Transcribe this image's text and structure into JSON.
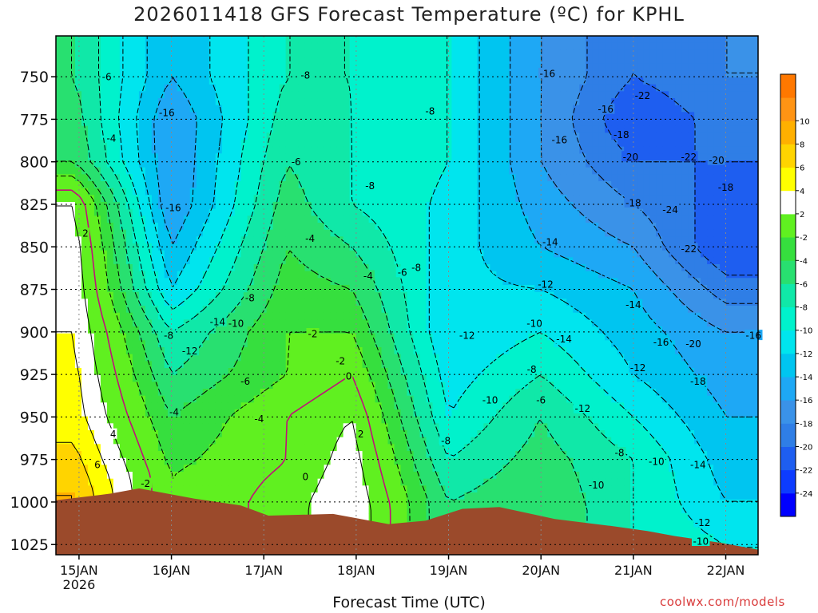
{
  "chart_data": {
    "type": "heatmap",
    "title": "2026011418 GFS Forecast Temperature (ºC) for KPHL",
    "xlabel": "Forecast Time (UTC)",
    "ylabel": "",
    "credit": "coolwx.com/models",
    "x_ticks": [
      {
        "label": "15JAN",
        "sublabel": "2026",
        "t": 0.25
      },
      {
        "label": "16JAN",
        "sublabel": "",
        "t": 1.25
      },
      {
        "label": "17JAN",
        "sublabel": "",
        "t": 2.25
      },
      {
        "label": "18JAN",
        "sublabel": "",
        "t": 3.25
      },
      {
        "label": "19JAN",
        "sublabel": "",
        "t": 4.25
      },
      {
        "label": "20JAN",
        "sublabel": "",
        "t": 5.25
      },
      {
        "label": "21JAN",
        "sublabel": "",
        "t": 6.25
      },
      {
        "label": "22JAN",
        "sublabel": "",
        "t": 7.25
      }
    ],
    "x_range_days": [
      0,
      7.6
    ],
    "y_ticks": [
      750,
      775,
      800,
      825,
      850,
      875,
      900,
      925,
      950,
      975,
      1000,
      1025
    ],
    "y_range_hpa": [
      726,
      1031
    ],
    "grid": true,
    "colorbar": {
      "levels": [
        -26,
        -24,
        -22,
        -20,
        -18,
        -16,
        -14,
        -12,
        -10,
        -8,
        -6,
        -4,
        -2,
        2,
        4,
        6,
        8,
        10,
        12
      ],
      "tick_labels": [
        "-24",
        "-22",
        "-20",
        "-18",
        "-16",
        "-14",
        "-12",
        "-10",
        "-8",
        "-6",
        "-4",
        "-2",
        "2",
        "4",
        "6",
        "8",
        "10"
      ],
      "colors": [
        "#0000ff",
        "#0d3cff",
        "#1e5ef0",
        "#2f7ee6",
        "#3a92e8",
        "#1ea8f5",
        "#00c5f0",
        "#00e5ee",
        "#00f2cc",
        "#10e8a8",
        "#28e070",
        "#36df3e",
        "#60f020",
        "#ffffff",
        "#ffff00",
        "#ffd400",
        "#ffb000",
        "#ff9414",
        "#ff7800"
      ]
    },
    "ground_hpa_by_day": [
      [
        0,
        999
      ],
      [
        0.6,
        995
      ],
      [
        0.9,
        992
      ],
      [
        1.5,
        998
      ],
      [
        2.0,
        1002
      ],
      [
        2.3,
        1008
      ],
      [
        3.0,
        1007
      ],
      [
        3.6,
        1013
      ],
      [
        4.0,
        1011
      ],
      [
        4.4,
        1004
      ],
      [
        4.8,
        1003
      ],
      [
        5.4,
        1010
      ],
      [
        6.0,
        1014
      ],
      [
        6.4,
        1017
      ],
      [
        6.7,
        1020
      ],
      [
        7.2,
        1024
      ],
      [
        7.6,
        1028
      ]
    ],
    "temperature_snapshots_c": [
      {
        "t": 0.2,
        "profile": [
          [
            750,
            -6
          ],
          [
            800,
            -4
          ],
          [
            825,
            2
          ],
          [
            850,
            3
          ],
          [
            900,
            4
          ],
          [
            950,
            5
          ],
          [
            980,
            7
          ],
          [
            995,
            8
          ]
        ]
      },
      {
        "t": 1.25,
        "profile": [
          [
            750,
            -14
          ],
          [
            775,
            -16
          ],
          [
            825,
            -16
          ],
          [
            875,
            -12
          ],
          [
            900,
            -8
          ],
          [
            925,
            -6
          ],
          [
            950,
            -4
          ],
          [
            985,
            -2
          ]
        ]
      },
      {
        "t": 2.5,
        "profile": [
          [
            750,
            -8
          ],
          [
            800,
            -6
          ],
          [
            850,
            -4
          ],
          [
            900,
            -2
          ],
          [
            925,
            -2
          ],
          [
            950,
            0
          ],
          [
            975,
            0
          ],
          [
            1000,
            1
          ]
        ]
      },
      {
        "t": 3.2,
        "profile": [
          [
            750,
            -8
          ],
          [
            825,
            -8
          ],
          [
            875,
            -4
          ],
          [
            900,
            -2
          ],
          [
            925,
            0
          ],
          [
            950,
            2
          ],
          [
            975,
            3
          ],
          [
            1005,
            4
          ]
        ]
      },
      {
        "t": 4.25,
        "profile": [
          [
            750,
            -10
          ],
          [
            800,
            -10
          ],
          [
            900,
            -12
          ],
          [
            950,
            -10
          ],
          [
            975,
            -8
          ],
          [
            1000,
            -6
          ]
        ]
      },
      {
        "t": 5.25,
        "profile": [
          [
            750,
            -16
          ],
          [
            800,
            -16
          ],
          [
            850,
            -14
          ],
          [
            875,
            -12
          ],
          [
            900,
            -10
          ],
          [
            925,
            -8
          ],
          [
            950,
            -6
          ],
          [
            1005,
            -4
          ]
        ]
      },
      {
        "t": 6.25,
        "profile": [
          [
            750,
            -20
          ],
          [
            775,
            -22
          ],
          [
            825,
            -18
          ],
          [
            875,
            -14
          ],
          [
            925,
            -12
          ],
          [
            975,
            -8
          ],
          [
            1015,
            -8
          ]
        ]
      },
      {
        "t": 7.25,
        "profile": [
          [
            750,
            -18
          ],
          [
            800,
            -20
          ],
          [
            850,
            -22
          ],
          [
            900,
            -16
          ],
          [
            950,
            -14
          ],
          [
            1000,
            -12
          ],
          [
            1025,
            -10
          ]
        ]
      }
    ],
    "contour_labels": [
      {
        "text": "-6",
        "t": 0.55,
        "p": 750
      },
      {
        "text": "-4",
        "t": 0.6,
        "p": 786
      },
      {
        "text": "2",
        "t": 0.32,
        "p": 842
      },
      {
        "text": "4",
        "t": 0.62,
        "p": 960
      },
      {
        "text": "6",
        "t": 0.45,
        "p": 978
      },
      {
        "text": "-2",
        "t": 0.97,
        "p": 989
      },
      {
        "text": "-16",
        "t": 1.2,
        "p": 771
      },
      {
        "text": "-16",
        "t": 1.27,
        "p": 827
      },
      {
        "text": "-14",
        "t": 1.75,
        "p": 894
      },
      {
        "text": "-10",
        "t": 1.95,
        "p": 895
      },
      {
        "text": "-12",
        "t": 1.45,
        "p": 911
      },
      {
        "text": "-8",
        "t": 1.22,
        "p": 902
      },
      {
        "text": "-4",
        "t": 1.28,
        "p": 947
      },
      {
        "text": "-6",
        "t": 2.05,
        "p": 929
      },
      {
        "text": "-8",
        "t": 2.1,
        "p": 880
      },
      {
        "text": "-4",
        "t": 2.2,
        "p": 951
      },
      {
        "text": "-8",
        "t": 2.7,
        "p": 749
      },
      {
        "text": "-6",
        "t": 2.6,
        "p": 800
      },
      {
        "text": "-4",
        "t": 2.75,
        "p": 845
      },
      {
        "text": "-2",
        "t": 2.78,
        "p": 901
      },
      {
        "text": "-2",
        "t": 3.08,
        "p": 917
      },
      {
        "text": "0",
        "t": 3.17,
        "p": 926
      },
      {
        "text": "2",
        "t": 3.3,
        "p": 960
      },
      {
        "text": "0",
        "t": 2.7,
        "p": 985
      },
      {
        "text": "-8",
        "t": 3.4,
        "p": 814
      },
      {
        "text": "-4",
        "t": 3.38,
        "p": 867
      },
      {
        "text": "-6",
        "t": 3.75,
        "p": 865
      },
      {
        "text": "-8",
        "t": 3.9,
        "p": 862
      },
      {
        "text": "-8",
        "t": 4.05,
        "p": 770
      },
      {
        "text": "-12",
        "t": 4.45,
        "p": 902
      },
      {
        "text": "-10",
        "t": 4.7,
        "p": 940
      },
      {
        "text": "-8",
        "t": 4.22,
        "p": 964
      },
      {
        "text": "-16",
        "t": 5.32,
        "p": 748
      },
      {
        "text": "-16",
        "t": 5.45,
        "p": 787
      },
      {
        "text": "-14",
        "t": 5.35,
        "p": 847
      },
      {
        "text": "-12",
        "t": 5.3,
        "p": 872
      },
      {
        "text": "-10",
        "t": 5.18,
        "p": 895
      },
      {
        "text": "-14",
        "t": 5.5,
        "p": 904
      },
      {
        "text": "-8",
        "t": 5.15,
        "p": 922
      },
      {
        "text": "-6",
        "t": 5.25,
        "p": 940
      },
      {
        "text": "-12",
        "t": 5.7,
        "p": 945
      },
      {
        "text": "-10",
        "t": 5.85,
        "p": 990
      },
      {
        "text": "-16",
        "t": 5.95,
        "p": 769
      },
      {
        "text": "-18",
        "t": 6.12,
        "p": 784
      },
      {
        "text": "-20",
        "t": 6.22,
        "p": 797
      },
      {
        "text": "-22",
        "t": 6.35,
        "p": 761
      },
      {
        "text": "-18",
        "t": 6.25,
        "p": 824
      },
      {
        "text": "-14",
        "t": 6.25,
        "p": 884
      },
      {
        "text": "-12",
        "t": 6.3,
        "p": 921
      },
      {
        "text": "-8",
        "t": 6.1,
        "p": 971
      },
      {
        "text": "-10",
        "t": 6.5,
        "p": 976
      },
      {
        "text": "-16",
        "t": 6.55,
        "p": 906
      },
      {
        "text": "-24",
        "t": 6.65,
        "p": 828
      },
      {
        "text": "-22",
        "t": 6.85,
        "p": 797
      },
      {
        "text": "-20",
        "t": 7.15,
        "p": 799
      },
      {
        "text": "-18",
        "t": 7.25,
        "p": 815
      },
      {
        "text": "-22",
        "t": 6.85,
        "p": 851
      },
      {
        "text": "-20",
        "t": 6.9,
        "p": 907
      },
      {
        "text": "-18",
        "t": 6.95,
        "p": 929
      },
      {
        "text": "-16",
        "t": 7.55,
        "p": 902
      },
      {
        "text": "-14",
        "t": 6.95,
        "p": 978
      },
      {
        "text": "-12",
        "t": 7.0,
        "p": 1012
      },
      {
        "text": "-10",
        "t": 6.98,
        "p": 1023
      }
    ]
  }
}
